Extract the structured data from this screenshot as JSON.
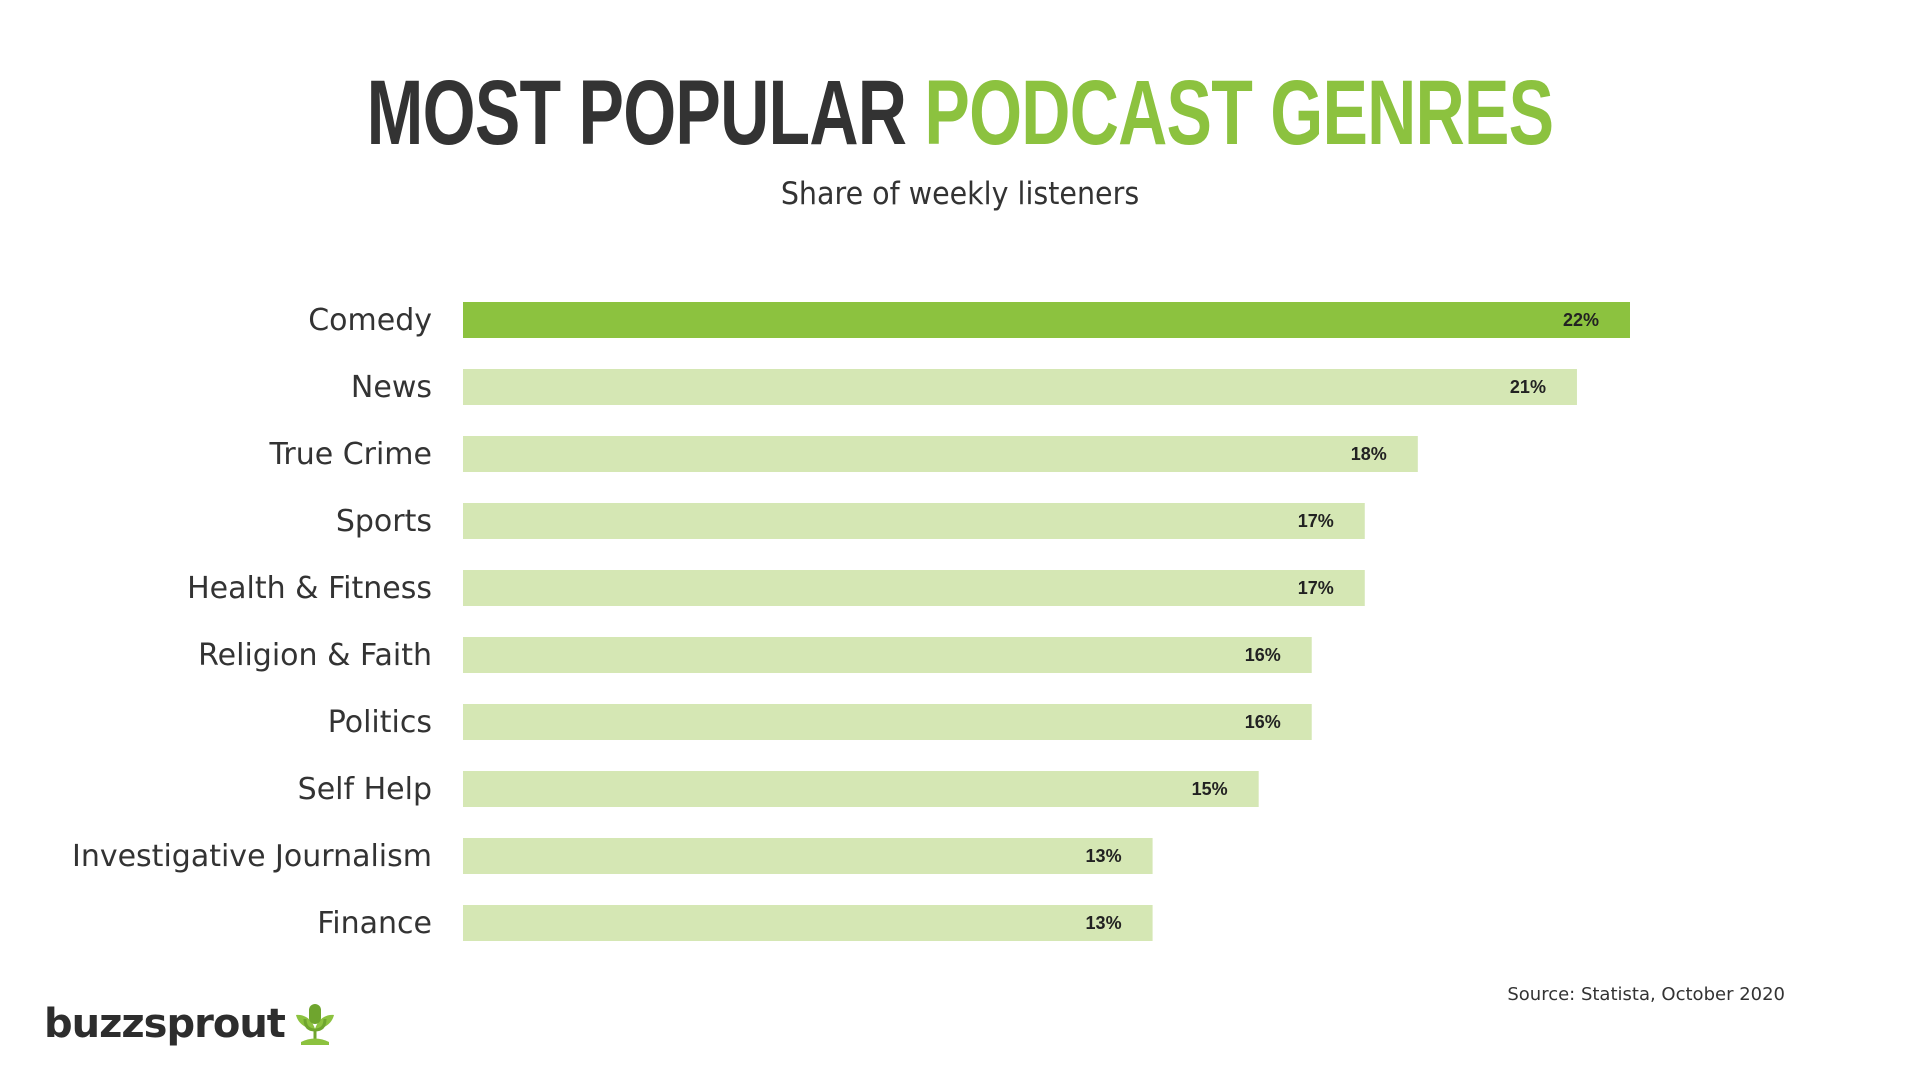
{
  "header": {
    "title_part1": "MOST POPULAR",
    "title_part2": "PODCAST GENRES",
    "subtitle": "Share of weekly listeners"
  },
  "footer": {
    "source": "Source: Statista, October 2020",
    "logo_text": "buzzsprout",
    "logo_icon": "microphone-sprout-icon"
  },
  "colors": {
    "highlight_bar": "#8cc23f",
    "bar": "#d5e7b4",
    "title_dark": "#333333",
    "title_accent": "#8cc23f"
  },
  "chart_data": {
    "type": "bar",
    "orientation": "horizontal",
    "title": "MOST POPULAR PODCAST GENRES",
    "subtitle": "Share of weekly listeners",
    "categories": [
      "Comedy",
      "News",
      "True Crime",
      "Sports",
      "Health & Fitness",
      "Religion & Faith",
      "Politics",
      "Self Help",
      "Investigative Journalism",
      "Finance"
    ],
    "values": [
      22,
      21,
      18,
      17,
      17,
      16,
      16,
      15,
      13,
      13
    ],
    "value_labels": [
      "22%",
      "21%",
      "18%",
      "17%",
      "17%",
      "16%",
      "16%",
      "15%",
      "13%",
      "13%"
    ],
    "unit": "%",
    "highlight_index": 0,
    "xlim": [
      0,
      22
    ],
    "grid": false,
    "legend": "none",
    "source": "Source: Statista, October 2020"
  }
}
